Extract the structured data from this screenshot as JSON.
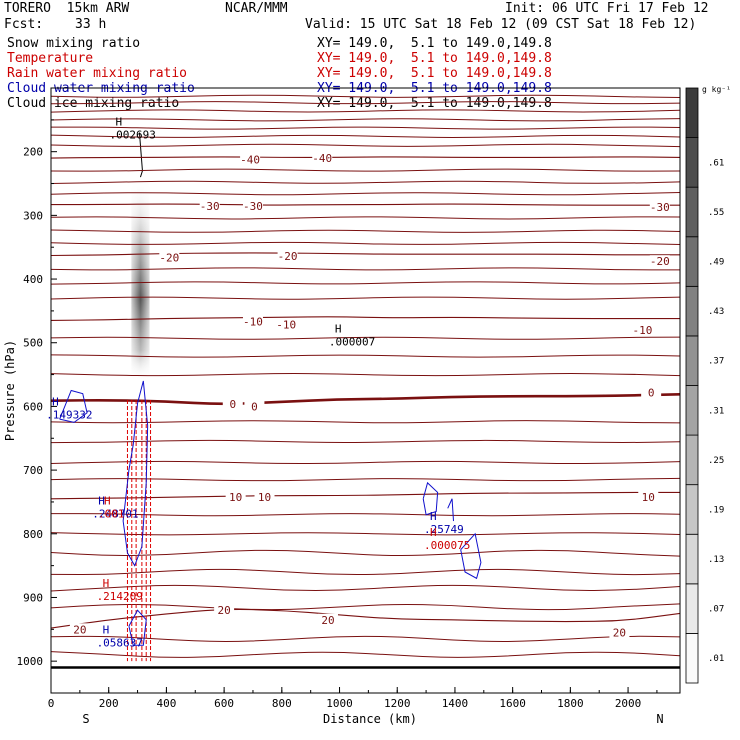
{
  "header": {
    "model": "TORERO  15km ARW",
    "org": "NCAR/MMM",
    "init": "Init: 06 UTC Fri 17 Feb 12",
    "fcst_label": "Fcst:",
    "fcst_value": "33 h",
    "valid": "Valid: 15 UTC Sat 18 Feb 12 (09 CST Sat 18 Feb 12)"
  },
  "fields": [
    {
      "name": "Snow mixing ratio",
      "xy": "XY= 149.0,  5.1 to 149.0,149.8",
      "color": "#000000"
    },
    {
      "name": "Temperature",
      "xy": "XY= 149.0,  5.1 to 149.0,149.8",
      "color": "#cc0000"
    },
    {
      "name": "Rain water mixing ratio",
      "xy": "XY= 149.0,  5.1 to 149.0,149.8",
      "color": "#cc0000"
    },
    {
      "name": "Cloud water mixing ratio",
      "xy": "XY= 149.0,  5.1 to 149.0,149.8",
      "color": "#0000aa"
    },
    {
      "name": "Cloud ice mixing ratio",
      "xy": "XY= 149.0,  5.1 to 149.0,149.8",
      "color": "#000000"
    }
  ],
  "chart_data": {
    "type": "cross-section contour",
    "xlabel": "Distance (km)",
    "ylabel": "Pressure (hPa)",
    "xlim": [
      0,
      2180
    ],
    "ylim": [
      1050,
      100
    ],
    "x_ticks": [
      0,
      200,
      400,
      600,
      800,
      1000,
      1200,
      1400,
      1600,
      1800,
      2000
    ],
    "y_ticks": [
      200,
      300,
      400,
      500,
      600,
      700,
      800,
      900,
      1000
    ],
    "left_end_label": "S",
    "right_end_label": "N",
    "colorbar": {
      "unit": "g kg⁻¹",
      "levels": [
        ".01",
        ".07",
        ".13",
        ".19",
        ".25",
        ".31",
        ".37",
        ".43",
        ".49",
        ".55",
        ".61"
      ]
    },
    "temperature_isotherms": [
      {
        "label": "-40",
        "p": [
          210,
          209,
          209,
          208,
          209,
          209,
          208,
          209,
          209,
          209,
          208,
          209
        ]
      },
      {
        "label": "-30",
        "p": [
          283,
          283,
          282,
          283,
          284,
          283,
          283,
          282,
          283,
          284,
          284,
          284
        ]
      },
      {
        "label": "-20",
        "p": [
          363,
          362,
          360,
          359,
          359,
          360,
          361,
          361,
          361,
          361,
          362,
          362
        ]
      },
      {
        "label": "-10",
        "p": [
          465,
          464,
          462,
          461,
          460,
          459,
          461,
          460,
          461,
          462,
          462,
          462
        ]
      },
      {
        "label": "0",
        "p": [
          591,
          590,
          592,
          597,
          593,
          589,
          588,
          585,
          584,
          584,
          583,
          581
        ]
      },
      {
        "label": "10",
        "p": [
          745,
          744,
          743,
          741,
          740,
          740,
          739,
          737,
          736,
          736,
          735,
          735
        ]
      },
      {
        "label": "20",
        "p": [
          948,
          935,
          926,
          918,
          920,
          927,
          934,
          935,
          937,
          938,
          937,
          925
        ]
      }
    ],
    "extra_isotherm_pressures": [
      113,
      123,
      136,
      150,
      163,
      176,
      190,
      229,
      248,
      266,
      304,
      325,
      344,
      384,
      406,
      430,
      493,
      521,
      550,
      624,
      655,
      688,
      715,
      770,
      800,
      830,
      860,
      885,
      915,
      965,
      990
    ],
    "temperature_labels": [
      {
        "text": "-40",
        "x": 690,
        "p": 212
      },
      {
        "text": "-40",
        "x": 940,
        "p": 210
      },
      {
        "text": "-30",
        "x": 550,
        "p": 285
      },
      {
        "text": "-30",
        "x": 700,
        "p": 285
      },
      {
        "text": "-30",
        "x": 2110,
        "p": 287
      },
      {
        "text": "-20",
        "x": 410,
        "p": 366
      },
      {
        "text": "-20",
        "x": 820,
        "p": 364
      },
      {
        "text": "-20",
        "x": 2110,
        "p": 372
      },
      {
        "text": "-10",
        "x": 700,
        "p": 467
      },
      {
        "text": "-10",
        "x": 815,
        "p": 471
      },
      {
        "text": "-10",
        "x": 2050,
        "p": 480
      },
      {
        "text": "0",
        "x": 630,
        "p": 596
      },
      {
        "text": "0",
        "x": 705,
        "p": 600
      },
      {
        "text": "0",
        "x": 2080,
        "p": 578
      },
      {
        "text": "10",
        "x": 640,
        "p": 742
      },
      {
        "text": "10",
        "x": 740,
        "p": 742
      },
      {
        "text": "10",
        "x": 2070,
        "p": 742
      },
      {
        "text": "20",
        "x": 600,
        "p": 920
      },
      {
        "text": "20",
        "x": 960,
        "p": 935
      },
      {
        "text": "20",
        "x": 100,
        "p": 950
      },
      {
        "text": "20",
        "x": 1970,
        "p": 955
      }
    ],
    "snow_column": {
      "x": 310,
      "p_top": 240,
      "p_bottom": 560,
      "peak_p": 430
    },
    "rain_shafts_x": [
      265,
      280,
      295,
      315,
      330,
      345
    ],
    "rain_shafts_p": [
      590,
      1000
    ],
    "cloud_water_contours": [
      [
        [
          30,
          620
        ],
        [
          70,
          575
        ],
        [
          110,
          580
        ],
        [
          125,
          610
        ],
        [
          80,
          625
        ],
        [
          30,
          620
        ]
      ],
      [
        [
          260,
          740
        ],
        [
          270,
          700
        ],
        [
          285,
          660
        ],
        [
          300,
          595
        ],
        [
          320,
          560
        ],
        [
          335,
          630
        ],
        [
          330,
          720
        ],
        [
          315,
          820
        ],
        [
          290,
          850
        ],
        [
          265,
          830
        ],
        [
          250,
          780
        ],
        [
          260,
          740
        ]
      ],
      [
        [
          1290,
          745
        ],
        [
          1305,
          720
        ],
        [
          1340,
          735
        ],
        [
          1335,
          765
        ],
        [
          1300,
          770
        ],
        [
          1290,
          745
        ]
      ],
      [
        [
          1375,
          760
        ],
        [
          1390,
          745
        ],
        [
          1395,
          780
        ]
      ],
      [
        [
          1420,
          825
        ],
        [
          1470,
          800
        ],
        [
          1490,
          845
        ],
        [
          1475,
          870
        ],
        [
          1435,
          860
        ],
        [
          1420,
          825
        ]
      ],
      [
        [
          270,
          945
        ],
        [
          300,
          920
        ],
        [
          330,
          935
        ],
        [
          320,
          975
        ],
        [
          285,
          975
        ],
        [
          270,
          945
        ]
      ]
    ],
    "ground_pressure": 1010,
    "annotations": [
      {
        "mark": "H",
        "value": ".002693",
        "x": 300,
        "p": 165,
        "color": "#000000"
      },
      {
        "mark": "H",
        "value": ".000007",
        "x": 1060,
        "p": 490,
        "color": "#000000"
      },
      {
        "mark": "H",
        "value": ".149332",
        "x": 80,
        "p": 605,
        "color": "#0000aa"
      },
      {
        "mark": "H",
        "value": ".248701",
        "x": 240,
        "p": 760,
        "color": "#0000aa"
      },
      {
        "mark": "H",
        "value": ".001",
        "x": 260,
        "p": 760,
        "color": "#cc0000"
      },
      {
        "mark": "H",
        "value": ".25749",
        "x": 1390,
        "p": 785,
        "color": "#0000aa"
      },
      {
        "mark": "H",
        "value": ".000075",
        "x": 1390,
        "p": 810,
        "color": "#cc0000"
      },
      {
        "mark": "H",
        "value": ".214209",
        "x": 255,
        "p": 890,
        "color": "#cc0000"
      },
      {
        "mark": "H",
        "value": ".058637",
        "x": 255,
        "p": 963,
        "color": "#0000aa"
      }
    ]
  }
}
